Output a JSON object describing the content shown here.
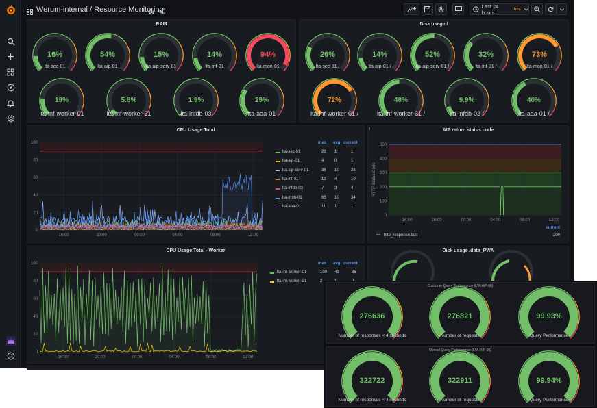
{
  "app": {
    "title": "Werum-internal / Resource Monitoring",
    "time_range": "Last 24 hours",
    "timezone": "UTC"
  },
  "sidebar": [
    "grafana-logo-icon",
    "search-icon",
    "plus-icon",
    "dashboards-icon",
    "explore-icon",
    "alerting-icon",
    "configuration-icon",
    "avatar-icon",
    "help-icon"
  ],
  "ram": {
    "title": "RAM",
    "row1": [
      {
        "label": "lta-sec-01",
        "value": "16%",
        "fraction": 0.16,
        "color": "#73bf69"
      },
      {
        "label": "lta-aip-01",
        "value": "54%",
        "fraction": 0.54,
        "color": "#73bf69"
      },
      {
        "label": "lta-aip-serv-01",
        "value": "15%",
        "fraction": 0.15,
        "color": "#73bf69"
      },
      {
        "label": "lta-inf-01",
        "value": "14%",
        "fraction": 0.14,
        "color": "#73bf69"
      },
      {
        "label": "lta-mon-01",
        "value": "94%",
        "fraction": 0.94,
        "color": "#f2495c"
      }
    ],
    "row2": [
      {
        "label": "lta-inf-worker-01",
        "value": "19%",
        "fraction": 0.19,
        "color": "#73bf69"
      },
      {
        "label": "lta-inf-worker-31",
        "value": "5.8%",
        "fraction": 0.058,
        "color": "#73bf69"
      },
      {
        "label": "lta-infdb-03",
        "value": "1.9%",
        "fraction": 0.019,
        "color": "#73bf69"
      },
      {
        "label": "lta-aaa-01",
        "value": "29%",
        "fraction": 0.29,
        "color": "#73bf69"
      }
    ]
  },
  "disk": {
    "title": "Disk usage /",
    "row1": [
      {
        "label": "lta-sec-01 /",
        "value": "26%",
        "fraction": 0.26,
        "color": "#73bf69"
      },
      {
        "label": "lta-aip-01 /",
        "value": "14%",
        "fraction": 0.14,
        "color": "#73bf69"
      },
      {
        "label": "lta-aip-serv-01 /",
        "value": "52%",
        "fraction": 0.52,
        "color": "#73bf69"
      },
      {
        "label": "lta-inf-01 /",
        "value": "32%",
        "fraction": 0.32,
        "color": "#73bf69"
      },
      {
        "label": "lta-mon-01 /",
        "value": "73%",
        "fraction": 0.73,
        "color": "#ff9830"
      }
    ],
    "row2": [
      {
        "label": "lta-inf-worker-01 /",
        "value": "72%",
        "fraction": 0.72,
        "color": "#ff9830"
      },
      {
        "label": "lta-inf-worker-31 /",
        "value": "48%",
        "fraction": 0.48,
        "color": "#73bf69"
      },
      {
        "label": "lta-infdb-03 /",
        "value": "9.9%",
        "fraction": 0.099,
        "color": "#73bf69"
      },
      {
        "label": "lta-aaa-01 /",
        "value": "40%",
        "fraction": 0.4,
        "color": "#73bf69"
      }
    ]
  },
  "cpu_total": {
    "title": "CPU Usage Total",
    "legend_headers": [
      "max",
      "avg",
      "current"
    ],
    "legend": [
      {
        "name": "lta-sec-01",
        "max": "22",
        "avg": "1",
        "current": "1",
        "color": "#73bf69"
      },
      {
        "name": "lta-aip-01",
        "max": "4",
        "avg": "0",
        "current": "1",
        "color": "#f2cc0c"
      },
      {
        "name": "lta-aip-serv-01",
        "max": "36",
        "avg": "10",
        "current": "28",
        "color": "#8ab8ff"
      },
      {
        "name": "lta-inf-01",
        "max": "12",
        "avg": "4",
        "current": "10",
        "color": "#ff780a"
      },
      {
        "name": "lta-infdb-03",
        "max": "7",
        "avg": "3",
        "current": "4",
        "color": "#f2495c"
      },
      {
        "name": "lta-mon-01",
        "max": "65",
        "avg": "10",
        "current": "34",
        "color": "#5794f2"
      },
      {
        "name": "lta-aaa-01",
        "max": "11",
        "avg": "1",
        "current": "1",
        "color": "#b877d9"
      }
    ]
  },
  "aip_status": {
    "title": "AIP return status code",
    "legend_header": "current",
    "legend": [
      {
        "name": "http_response.last",
        "current": "200",
        "color": "#73bf69"
      }
    ]
  },
  "cpu_worker": {
    "title": "CPU Usage Total - Worker",
    "legend_headers": [
      "max",
      "avg",
      "current"
    ],
    "legend": [
      {
        "name": "lta-inf-worker-01",
        "max": "100",
        "avg": "41",
        "current": "88",
        "color": "#73bf69"
      },
      {
        "name": "lta-inf-worker-31",
        "max": "2",
        "avg": "1",
        "current": "0",
        "color": "#f2cc0c"
      }
    ]
  },
  "disk_pwa": {
    "title": "Disk usage /data_PWA"
  },
  "overlay": {
    "panel1": {
      "title": "Customer Query Performance (LTA AIP-06)",
      "gauges": [
        {
          "value": "276636",
          "label": "Number of responses < 4 seconds",
          "fraction": 0.99,
          "color": "#73bf69"
        },
        {
          "value": "276821",
          "label": "Number of requests",
          "fraction": 1.0,
          "color": "#73bf69"
        },
        {
          "value": "99.93%",
          "label": "Query Performance",
          "fraction": 0.9993,
          "color": "#73bf69"
        }
      ]
    },
    "panel2": {
      "title": "Overall Query Performance (LTA-INF-06)",
      "gauges": [
        {
          "value": "322722",
          "label": "Number of responses < 4 seconds",
          "fraction": 0.99,
          "color": "#73bf69"
        },
        {
          "value": "322911",
          "label": "Number of requests",
          "fraction": 1.0,
          "color": "#73bf69"
        },
        {
          "value": "99.94%",
          "label": "Query Performance",
          "fraction": 0.9994,
          "color": "#73bf69"
        }
      ]
    }
  },
  "chart_data": [
    {
      "type": "line",
      "title": "CPU Usage Total",
      "x_ticks": [
        "16:00",
        "20:00",
        "00:00",
        "04:00",
        "08:00",
        "12:00"
      ],
      "ylim": [
        0,
        100
      ],
      "y_ticks": [
        0,
        20,
        40,
        60,
        80,
        100
      ],
      "threshold": 90,
      "series": [
        {
          "name": "lta-sec-01",
          "max": 22,
          "avg": 1,
          "current": 1
        },
        {
          "name": "lta-aip-01",
          "max": 4,
          "avg": 0,
          "current": 1
        },
        {
          "name": "lta-aip-serv-01",
          "max": 36,
          "avg": 10,
          "current": 28
        },
        {
          "name": "lta-inf-01",
          "max": 12,
          "avg": 4,
          "current": 10
        },
        {
          "name": "lta-infdb-03",
          "max": 7,
          "avg": 3,
          "current": 4
        },
        {
          "name": "lta-mon-01",
          "max": 65,
          "avg": 10,
          "current": 34
        },
        {
          "name": "lta-aaa-01",
          "max": 11,
          "avg": 1,
          "current": 1
        }
      ]
    },
    {
      "type": "line",
      "title": "AIP return status code",
      "ylabel": "HTTP Status Code",
      "x_ticks": [
        "16:00",
        "20:00",
        "00:00",
        "04:00",
        "08:00",
        "12:00"
      ],
      "ylim": [
        0,
        500
      ],
      "y_ticks": [
        0,
        100,
        200,
        300,
        400,
        500
      ],
      "series": [
        {
          "name": "http_response.last",
          "current": 200
        }
      ]
    },
    {
      "type": "line",
      "title": "CPU Usage Total - Worker",
      "x_ticks": [
        "16:00",
        "20:00",
        "00:00",
        "04:00",
        "08:00",
        "12:00"
      ],
      "ylim": [
        0,
        100
      ],
      "y_ticks": [
        0,
        20,
        40,
        60,
        80,
        100
      ],
      "threshold": 90,
      "series": [
        {
          "name": "lta-inf-worker-01",
          "max": 100,
          "avg": 41,
          "current": 88
        },
        {
          "name": "lta-inf-worker-31",
          "max": 2,
          "avg": 1,
          "current": 0
        }
      ]
    }
  ]
}
